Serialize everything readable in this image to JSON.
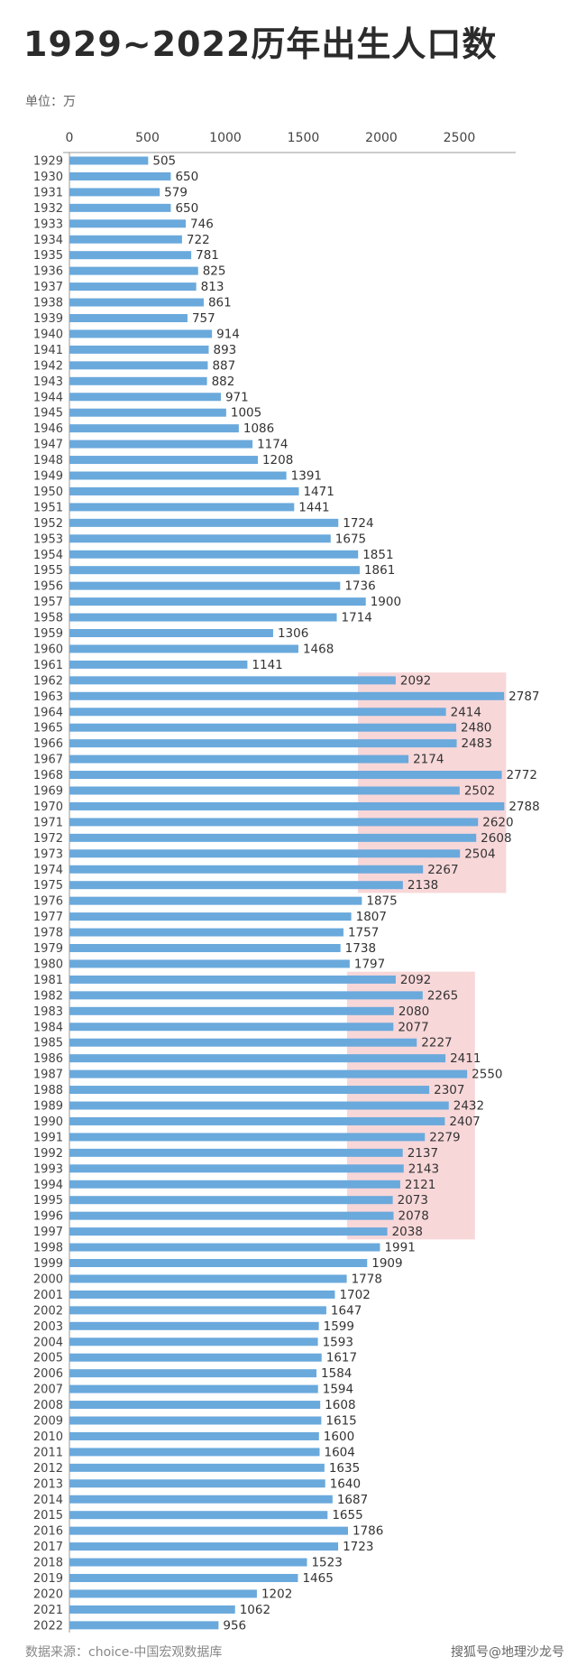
{
  "title": "1929~2022历年出生人口数",
  "unit_label": "单位：万",
  "source_label": "数据来源：choice-中国宏观数据库",
  "watermark": "搜狐号@地理沙龙号",
  "colors": {
    "bar": "#6aa9dc",
    "highlight": "#f6c9cc",
    "axis": "#999999"
  },
  "chart_data": {
    "type": "bar",
    "orientation": "horizontal",
    "title": "1929~2022历年出生人口数",
    "unit": "万",
    "xlim": [
      0,
      2800
    ],
    "xticks": [
      0,
      500,
      1000,
      1500,
      2000,
      2500
    ],
    "categories": [
      "1929",
      "1930",
      "1931",
      "1932",
      "1933",
      "1934",
      "1935",
      "1936",
      "1937",
      "1938",
      "1939",
      "1940",
      "1941",
      "1942",
      "1943",
      "1944",
      "1945",
      "1946",
      "1947",
      "1948",
      "1949",
      "1950",
      "1951",
      "1952",
      "1953",
      "1954",
      "1955",
      "1956",
      "1957",
      "1958",
      "1959",
      "1960",
      "1961",
      "1962",
      "1963",
      "1964",
      "1965",
      "1966",
      "1967",
      "1968",
      "1969",
      "1970",
      "1971",
      "1972",
      "1973",
      "1974",
      "1975",
      "1976",
      "1977",
      "1978",
      "1979",
      "1980",
      "1981",
      "1982",
      "1983",
      "1984",
      "1985",
      "1986",
      "1987",
      "1988",
      "1989",
      "1990",
      "1991",
      "1992",
      "1993",
      "1994",
      "1995",
      "1996",
      "1997",
      "1998",
      "1999",
      "2000",
      "2001",
      "2002",
      "2003",
      "2004",
      "2005",
      "2006",
      "2007",
      "2008",
      "2009",
      "2010",
      "2011",
      "2012",
      "2013",
      "2014",
      "2015",
      "2016",
      "2017",
      "2018",
      "2019",
      "2020",
      "2021",
      "2022"
    ],
    "values": [
      505,
      650,
      579,
      650,
      746,
      722,
      781,
      825,
      813,
      861,
      757,
      914,
      893,
      887,
      882,
      971,
      1005,
      1086,
      1174,
      1208,
      1391,
      1471,
      1441,
      1724,
      1675,
      1851,
      1861,
      1736,
      1900,
      1714,
      1306,
      1468,
      1141,
      2092,
      2787,
      2414,
      2480,
      2483,
      2174,
      2772,
      2502,
      2788,
      2620,
      2608,
      2504,
      2267,
      2138,
      1875,
      1807,
      1757,
      1738,
      1797,
      2092,
      2265,
      2080,
      2077,
      2227,
      2411,
      2550,
      2307,
      2432,
      2407,
      2279,
      2137,
      2143,
      2121,
      2073,
      2078,
      2038,
      1991,
      1909,
      1778,
      1702,
      1647,
      1599,
      1593,
      1617,
      1584,
      1594,
      1608,
      1615,
      1600,
      1604,
      1635,
      1640,
      1687,
      1655,
      1786,
      1723,
      1523,
      1465,
      1202,
      1062,
      956
    ],
    "highlights": [
      {
        "from": "1962",
        "to": "1975",
        "x_start": 1850,
        "x_end": 2800
      },
      {
        "from": "1981",
        "to": "1997",
        "x_start": 1780,
        "x_end": 2600
      }
    ],
    "grid": false,
    "legend": "none"
  }
}
